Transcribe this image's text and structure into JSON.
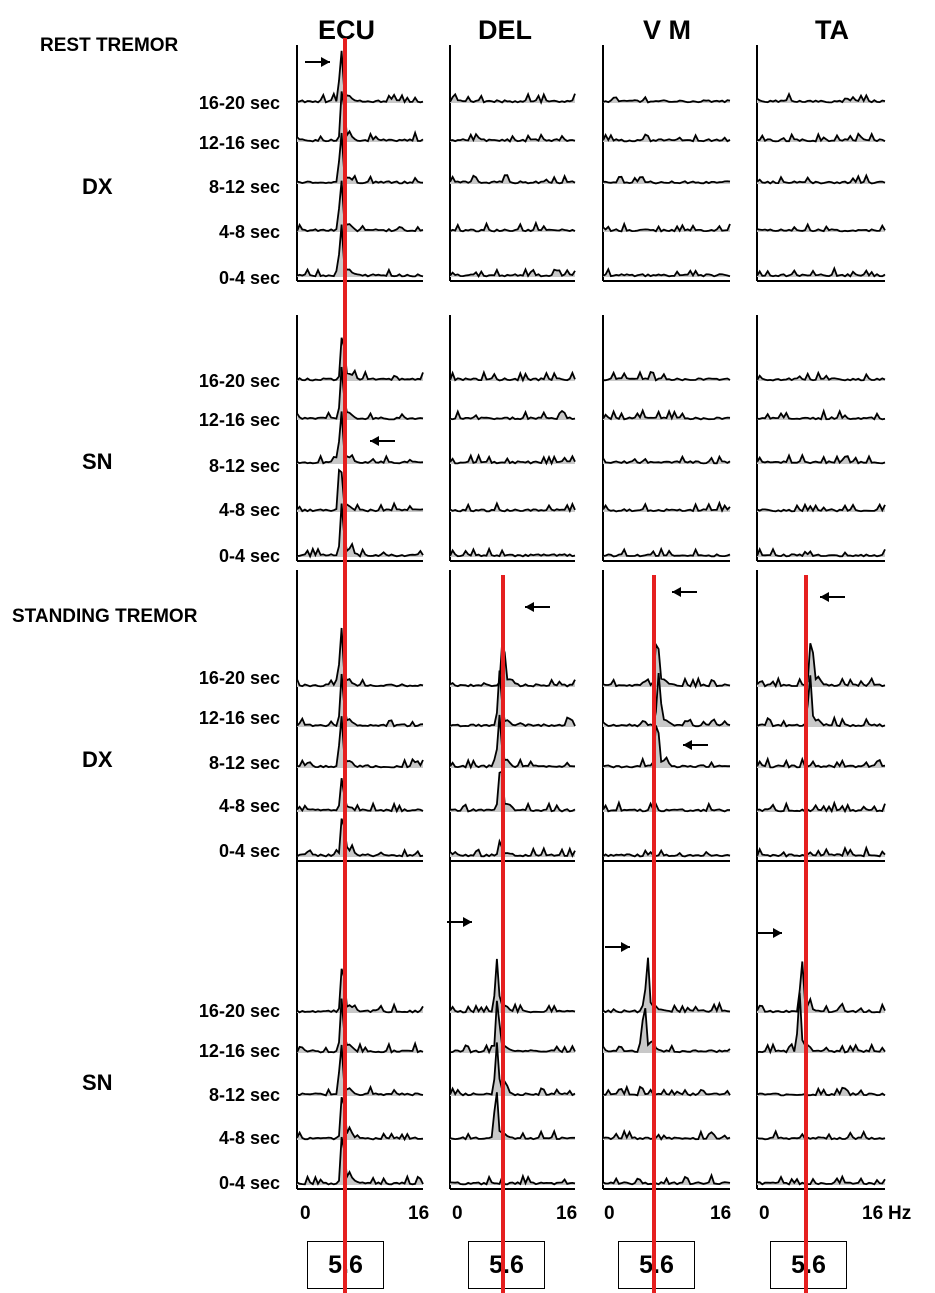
{
  "chart_data": {
    "type": "line",
    "description_free": true,
    "columns": [
      "ECU",
      "DEL",
      "V M",
      "TA"
    ],
    "epochs": [
      "16-20 sec",
      "12-16 sec",
      "8-12 sec",
      "4-8 sec",
      "0-4 sec"
    ],
    "x_range_hz": [
      0,
      16
    ],
    "x_ticks": {
      "start": "0",
      "end": "16",
      "unit": "Hz"
    },
    "peak_frequency_hz": 5.6,
    "peak_labels": [
      "5.6",
      "5.6",
      "5.6",
      "5.6"
    ],
    "sections": [
      {
        "name": "REST TREMOR",
        "sides": [
          {
            "name": "DX",
            "peaks": [
              [
                [
                  5.6,
                  1.0
                ],
                [
                  5.8,
                  1.0
                ],
                [
                  5.6,
                  1.0
                ],
                [
                  5.6,
                  1.0
                ],
                [
                  5.6,
                  1.0
                ]
              ],
              [
                [],
                [],
                [],
                [],
                []
              ],
              [
                [],
                [],
                [],
                [],
                []
              ],
              [
                [],
                [],
                [],
                [],
                []
              ]
            ]
          },
          {
            "name": "SN",
            "peaks": [
              [
                [
                  5.8,
                  1.0
                ],
                [
                  5.7,
                  1.0
                ],
                [
                  5.6,
                  1.0
                ],
                [
                  5.5,
                  1.0
                ],
                [
                  5.7,
                  1.0
                ]
              ],
              [
                [],
                [],
                [],
                [],
                []
              ],
              [
                [],
                [],
                [],
                [],
                []
              ],
              [
                [],
                [],
                [],
                [],
                []
              ]
            ]
          }
        ]
      },
      {
        "name": "STANDING TREMOR",
        "sides": [
          {
            "name": "DX",
            "peaks": [
              [
                [
                  5.6,
                  1.0
                ],
                [
                  5.7,
                  1.0
                ],
                [
                  5.6,
                  1.0
                ],
                [
                  5.7,
                  0.6
                ],
                [
                  5.8,
                  0.9
                ]
              ],
              [
                [
                  6.8,
                  1.0
                ],
                [
                  6.4,
                  1.0
                ],
                [
                  6.3,
                  1.0
                ],
                [
                  6.5,
                  1.0
                ],
                [
                  6.4,
                  0.3
                ]
              ],
              [
                [
                  6.8,
                  1.0
                ],
                [
                  7.0,
                  1.0
                ],
                [
                  6.8,
                  1.0
                ],
                [],
                []
              ],
              [
                [
                  6.8,
                  1.0
                ],
                [
                  6.6,
                  1.0
                ],
                [],
                [],
                []
              ]
            ]
          },
          {
            "name": "SN",
            "peaks": [
              [
                [
                  5.8,
                  1.0
                ],
                [
                  5.7,
                  1.0
                ],
                [
                  5.6,
                  1.0
                ],
                [
                  5.8,
                  1.0
                ],
                [
                  5.8,
                  1.0
                ]
              ],
              [
                [
                  6.0,
                  1.0
                ],
                [
                  6.1,
                  1.0
                ],
                [
                  6.0,
                  1.0
                ],
                [
                  5.9,
                  1.0
                ],
                []
              ],
              [
                [
                  5.6,
                  1.0
                ],
                [
                  5.2,
                  1.0
                ],
                [],
                [],
                []
              ],
              [
                [
                  5.6,
                  1.0
                ],
                [
                  5.3,
                  1.0
                ],
                [],
                [],
                []
              ]
            ]
          }
        ]
      }
    ],
    "reference_line": {
      "x": 5.6,
      "color": "#e51f1f"
    },
    "fill_color": "#c8c8c8",
    "line_color": "#000000"
  }
}
